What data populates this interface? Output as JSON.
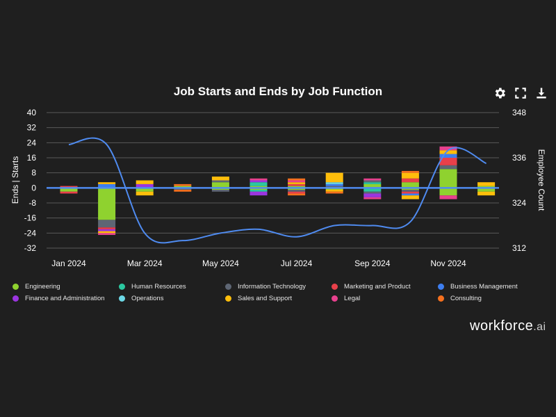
{
  "chart_data": {
    "type": "bar",
    "title": "Job Starts and Ends by Job Function",
    "ylabel": "Ends | Starts",
    "y2label": "Employee Count",
    "ylim": [
      -32,
      40
    ],
    "y_ticks": [
      40,
      32,
      24,
      16,
      8,
      0,
      -8,
      -16,
      -24,
      -32
    ],
    "y2lim": [
      312,
      348
    ],
    "y2_ticks": [
      348,
      336,
      324,
      312
    ],
    "x_tick_labels": [
      "Jan 2024",
      "Mar 2024",
      "May 2024",
      "Jul 2024",
      "Sep 2024",
      "Nov 2024"
    ],
    "categories": [
      "Jan 2024",
      "Feb 2024",
      "Mar 2024",
      "Apr 2024",
      "May 2024",
      "Jun 2024",
      "Jul 2024",
      "Aug 2024",
      "Sep 2024",
      "Oct 2024",
      "Nov 2024",
      "Dec 2024"
    ],
    "series": [
      {
        "name": "Engineering",
        "color": "#8fd22f",
        "starts": [
          0,
          0,
          0,
          1,
          3,
          1,
          1,
          0,
          2,
          3,
          10,
          1
        ],
        "ends": [
          -2,
          -17,
          -2,
          0,
          -1,
          -1,
          -1,
          -1,
          0,
          -1,
          -4,
          -2
        ]
      },
      {
        "name": "Human Resources",
        "color": "#2bc8a0",
        "starts": [
          0,
          0,
          0,
          0,
          0,
          2,
          0,
          0,
          1,
          0,
          0,
          0
        ],
        "ends": [
          0,
          0,
          0,
          0,
          0,
          -1,
          0,
          0,
          -2,
          0,
          0,
          0
        ]
      },
      {
        "name": "Information Technology",
        "color": "#5e6674",
        "starts": [
          0,
          0,
          0,
          0,
          1,
          0,
          0,
          1,
          1,
          0,
          2,
          0
        ],
        "ends": [
          0,
          -4,
          0,
          -1,
          -1,
          0,
          -1,
          0,
          -1,
          -1,
          0,
          0
        ]
      },
      {
        "name": "Marketing and Product",
        "color": "#e8404a",
        "starts": [
          1,
          0,
          0,
          0,
          0,
          0,
          1,
          0,
          0,
          2,
          4,
          0
        ],
        "ends": [
          -1,
          -1,
          0,
          0,
          0,
          0,
          -1,
          0,
          0,
          -1,
          0,
          0
        ]
      },
      {
        "name": "Business Management",
        "color": "#3d7ef0",
        "starts": [
          0,
          2,
          0,
          0,
          0,
          0,
          0,
          1,
          0,
          0,
          2,
          0
        ],
        "ends": [
          0,
          0,
          0,
          0,
          0,
          0,
          0,
          0,
          0,
          -1,
          0,
          0
        ]
      },
      {
        "name": "Finance and Administration",
        "color": "#9b35e0",
        "starts": [
          0,
          0,
          2,
          0,
          0,
          1,
          0,
          0,
          0,
          0,
          0,
          0
        ],
        "ends": [
          0,
          -1,
          0,
          0,
          0,
          -2,
          0,
          0,
          -2,
          0,
          0,
          0
        ]
      },
      {
        "name": "Operations",
        "color": "#6cd8e6",
        "starts": [
          0,
          0,
          0,
          0,
          0,
          0,
          0,
          1,
          0,
          0,
          0,
          0
        ],
        "ends": [
          0,
          0,
          0,
          0,
          0,
          0,
          0,
          0,
          0,
          0,
          0,
          0
        ]
      },
      {
        "name": "Sales and Support",
        "color": "#ffbe0b",
        "starts": [
          0,
          1,
          2,
          0,
          2,
          0,
          1,
          5,
          0,
          3,
          2,
          2
        ],
        "ends": [
          0,
          -1,
          -2,
          0,
          0,
          0,
          0,
          -1,
          0,
          -2,
          0,
          -2
        ]
      },
      {
        "name": "Legal",
        "color": "#e8418e",
        "starts": [
          0,
          0,
          0,
          0,
          0,
          1,
          1,
          0,
          1,
          0,
          2,
          0
        ],
        "ends": [
          0,
          -1,
          0,
          0,
          0,
          0,
          0,
          0,
          -1,
          0,
          -2,
          0
        ]
      },
      {
        "name": "Consulting",
        "color": "#f5701e",
        "starts": [
          0,
          0,
          0,
          1,
          0,
          0,
          1,
          0,
          0,
          1,
          0,
          0
        ],
        "ends": [
          0,
          0,
          0,
          -1,
          0,
          0,
          -1,
          -1,
          0,
          0,
          0,
          0
        ]
      }
    ],
    "employee_count": [
      339.5,
      339.5,
      316,
      314,
      316,
      317,
      315,
      318,
      318,
      319,
      338,
      334.5
    ],
    "line_color": "#4f8bf0",
    "grid": true,
    "legend_position": "bottom"
  },
  "brand": {
    "name": "workforce",
    "suffix": ".ai"
  },
  "toolbar": [
    "gear-icon",
    "fullscreen-icon",
    "download-icon"
  ]
}
